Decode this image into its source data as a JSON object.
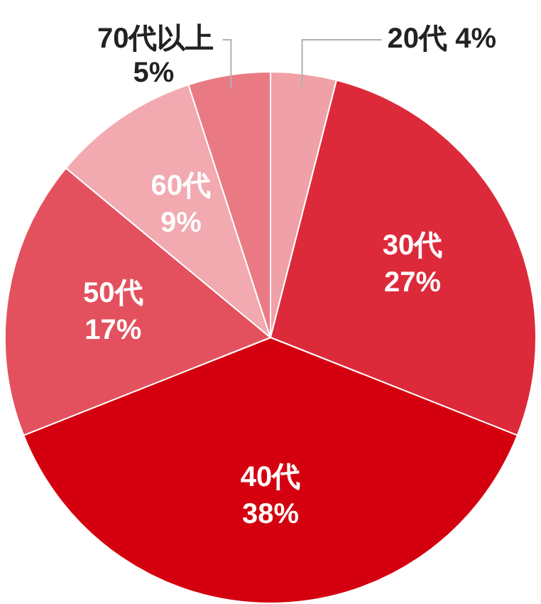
{
  "chart_data": {
    "type": "pie",
    "categories": [
      "20代",
      "30代",
      "40代",
      "50代",
      "60代",
      "70代以上"
    ],
    "values": [
      4,
      27,
      38,
      17,
      9,
      5
    ],
    "value_labels": [
      "4%",
      "27%",
      "38%",
      "17%",
      "9%",
      "5%"
    ],
    "colors": [
      "#f0a0a7",
      "#dd2a3b",
      "#d5000f",
      "#e4515e",
      "#f2a9b0",
      "#e97a83"
    ],
    "legend": false
  }
}
